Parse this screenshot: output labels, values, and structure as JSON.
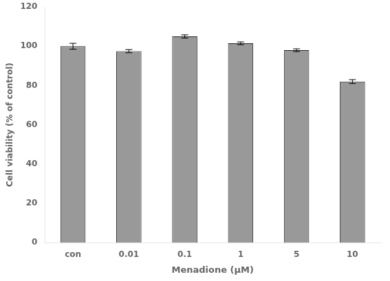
{
  "chart_data": {
    "type": "bar",
    "categories": [
      "con",
      "0.01",
      "0.1",
      "1",
      "5",
      "10"
    ],
    "values": [
      100.0,
      97.5,
      105.0,
      101.5,
      98.0,
      82.0
    ],
    "errors": [
      1.5,
      0.8,
      0.8,
      0.7,
      0.7,
      1.0
    ],
    "color": "#999999",
    "xlabel": "Menadione (μM)",
    "ylabel": "Cell viability (% of control)",
    "ylim": [
      0,
      120
    ],
    "yticks": [
      0,
      20,
      40,
      60,
      80,
      100,
      120
    ],
    "grid": false
  }
}
